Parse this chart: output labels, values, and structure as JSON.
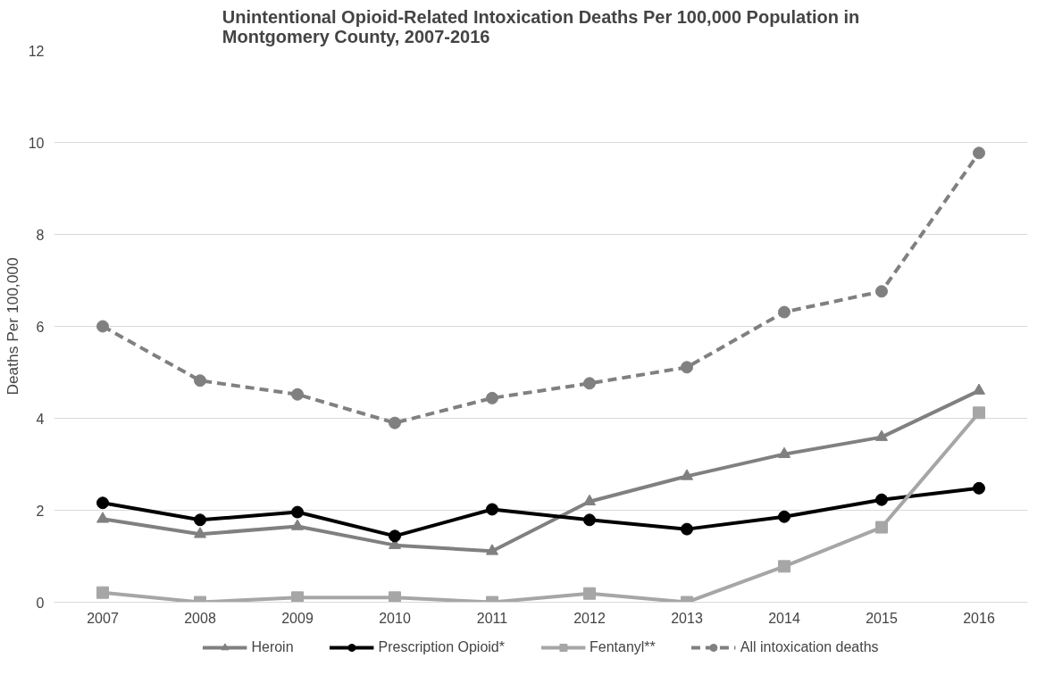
{
  "chart_data": {
    "type": "line",
    "title": "Unintentional Opioid-Related Intoxication Deaths Per 100,000 Population in Montgomery County, 2007-2016",
    "ylabel": "Deaths Per 100,000",
    "categories": [
      "2007",
      "2008",
      "2009",
      "2010",
      "2011",
      "2012",
      "2013",
      "2014",
      "2015",
      "2016"
    ],
    "series": [
      {
        "name": "Heroin",
        "color": "#808080",
        "marker": "triangle",
        "line_style": "solid",
        "values": [
          1.81,
          1.48,
          1.65,
          1.24,
          1.11,
          2.19,
          2.74,
          3.22,
          3.59,
          4.6
        ]
      },
      {
        "name": "Prescription Opioid*",
        "color": "#000000",
        "marker": "circle",
        "line_style": "solid",
        "values": [
          2.16,
          1.79,
          1.96,
          1.44,
          2.02,
          1.79,
          1.59,
          1.86,
          2.23,
          2.48
        ]
      },
      {
        "name": "Fentanyl**",
        "color": "#a6a6a6",
        "marker": "square",
        "line_style": "solid",
        "values": [
          0.21,
          0,
          0.1,
          0.1,
          0,
          0.19,
          0,
          0.78,
          1.63,
          4.12
        ]
      },
      {
        "name": "All intoxication deaths",
        "color": "#808080",
        "marker": "circle",
        "line_style": "dashed",
        "values": [
          6.0,
          4.82,
          4.52,
          3.9,
          4.44,
          4.76,
          5.11,
          6.31,
          6.76,
          9.77
        ]
      }
    ],
    "ylim": [
      0,
      12
    ],
    "yticks": [
      0,
      2,
      4,
      6,
      8,
      10,
      12
    ],
    "grid": "y",
    "legend": "bottom"
  }
}
